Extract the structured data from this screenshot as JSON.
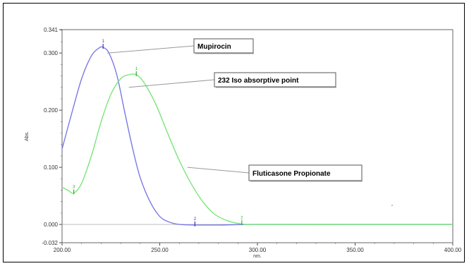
{
  "chart_data": {
    "type": "line",
    "xlabel": "nm.",
    "ylabel": "Abs.",
    "xlim": [
      200,
      400
    ],
    "ylim": [
      -0.032,
      0.341
    ],
    "x_ticks": [
      "200.00",
      "250.00",
      "300.00",
      "350.00",
      "400.00"
    ],
    "y_ticks": [
      "0.341",
      "0.300",
      "0.200",
      "0.100",
      "0.000",
      "-0.032"
    ],
    "series": [
      {
        "name": "Mupirocin",
        "color": "#7a7ae6",
        "points": [
          [
            200,
            0.132
          ],
          [
            205,
            0.195
          ],
          [
            210,
            0.255
          ],
          [
            215,
            0.295
          ],
          [
            219,
            0.309
          ],
          [
            221,
            0.31
          ],
          [
            224,
            0.3
          ],
          [
            228,
            0.262
          ],
          [
            232,
            0.198
          ],
          [
            236,
            0.135
          ],
          [
            240,
            0.082
          ],
          [
            245,
            0.04
          ],
          [
            250,
            0.014
          ],
          [
            255,
            0.004
          ],
          [
            260,
            0.0
          ],
          [
            268,
            -0.001
          ],
          [
            280,
            -0.001
          ],
          [
            300,
            0.0
          ],
          [
            350,
            0.0
          ],
          [
            400,
            0.0
          ]
        ]
      },
      {
        "name": "Fluticasone Propionate",
        "color": "#7ae67a",
        "points": [
          [
            200,
            0.065
          ],
          [
            203,
            0.06
          ],
          [
            206,
            0.055
          ],
          [
            210,
            0.072
          ],
          [
            215,
            0.12
          ],
          [
            220,
            0.18
          ],
          [
            225,
            0.228
          ],
          [
            230,
            0.255
          ],
          [
            234,
            0.262
          ],
          [
            238,
            0.262
          ],
          [
            242,
            0.248
          ],
          [
            248,
            0.21
          ],
          [
            254,
            0.16
          ],
          [
            260,
            0.112
          ],
          [
            266,
            0.072
          ],
          [
            272,
            0.04
          ],
          [
            278,
            0.018
          ],
          [
            285,
            0.006
          ],
          [
            292,
            0.001
          ],
          [
            300,
            0.0
          ],
          [
            350,
            0.0
          ],
          [
            400,
            0.0
          ]
        ]
      }
    ],
    "peak_markers": [
      {
        "x": 221,
        "y": 0.31,
        "label": "1",
        "color": "#3030c0"
      },
      {
        "x": 268,
        "y": -0.001,
        "label": "2",
        "color": "#3030c0"
      },
      {
        "x": 238,
        "y": 0.262,
        "label": "1",
        "color": "#30b030"
      },
      {
        "x": 206,
        "y": 0.055,
        "label": "3",
        "color": "#30b030"
      },
      {
        "x": 292,
        "y": 0.001,
        "label": "2",
        "color": "#30b030"
      }
    ],
    "annotations": [
      {
        "text": "Mupirocin",
        "target": [
          221,
          0.3
        ]
      },
      {
        "text": "232 Iso absorptive point",
        "target": [
          232,
          0.24
        ]
      },
      {
        "text": "Fluticasone Propionate",
        "target": [
          262,
          0.1
        ]
      }
    ]
  }
}
